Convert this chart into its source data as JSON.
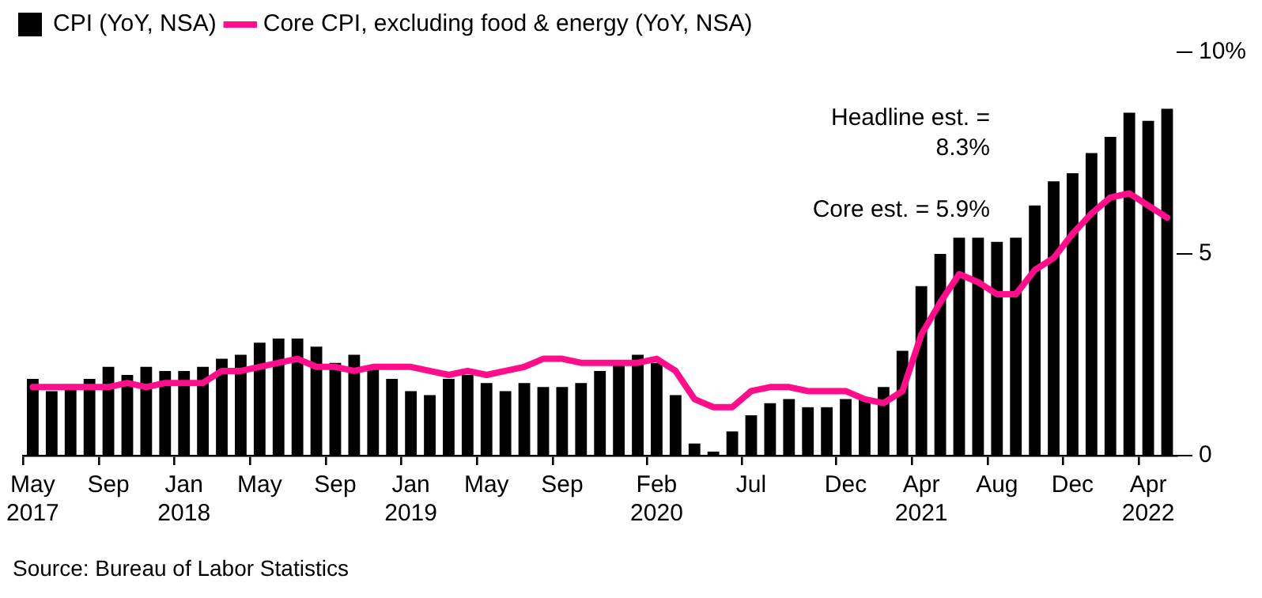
{
  "chart_data": {
    "type": "bar",
    "categories": [
      "May 2017",
      null,
      null,
      null,
      "Sep",
      null,
      null,
      null,
      "Jan 2018",
      null,
      null,
      null,
      "May",
      null,
      null,
      null,
      "Sep",
      null,
      null,
      null,
      "Jan 2019",
      null,
      null,
      null,
      "May",
      null,
      null,
      null,
      "Sep",
      null,
      null,
      null,
      null,
      "Feb 2020",
      null,
      null,
      null,
      null,
      "Jul",
      null,
      null,
      null,
      null,
      "Dec",
      null,
      null,
      null,
      "Apr 2021",
      null,
      null,
      null,
      "Aug",
      null,
      null,
      null,
      "Dec",
      null,
      null,
      null,
      "Apr 2022",
      null
    ],
    "series": [
      {
        "name": "CPI (YoY, NSA)",
        "color": "#000000",
        "values": [
          1.9,
          1.6,
          1.7,
          1.9,
          2.2,
          2.0,
          2.2,
          2.1,
          2.1,
          2.2,
          2.4,
          2.5,
          2.8,
          2.9,
          2.9,
          2.7,
          2.3,
          2.5,
          2.2,
          1.9,
          1.6,
          1.5,
          1.9,
          2.0,
          1.8,
          1.6,
          1.8,
          1.7,
          1.7,
          1.8,
          2.1,
          2.3,
          2.5,
          2.3,
          1.5,
          0.3,
          0.1,
          0.6,
          1.0,
          1.3,
          1.4,
          1.2,
          1.2,
          1.4,
          1.4,
          1.7,
          2.6,
          4.2,
          5.0,
          5.4,
          5.4,
          5.3,
          5.4,
          6.2,
          6.8,
          7.0,
          7.5,
          7.9,
          8.5,
          8.3,
          8.6
        ]
      },
      {
        "name": "Core CPI, excluding food & energy (YoY, NSA)",
        "type": "line",
        "color": "#ff0d8a",
        "values": [
          1.7,
          1.7,
          1.7,
          1.7,
          1.7,
          1.8,
          1.7,
          1.8,
          1.8,
          1.8,
          2.1,
          2.1,
          2.2,
          2.3,
          2.4,
          2.2,
          2.2,
          2.1,
          2.2,
          2.2,
          2.2,
          2.1,
          2.0,
          2.1,
          2.0,
          2.1,
          2.2,
          2.4,
          2.4,
          2.3,
          2.3,
          2.3,
          2.3,
          2.4,
          2.1,
          1.4,
          1.2,
          1.2,
          1.6,
          1.7,
          1.7,
          1.6,
          1.6,
          1.6,
          1.4,
          1.3,
          1.6,
          3.0,
          3.8,
          4.5,
          4.3,
          4.0,
          4.0,
          4.6,
          4.9,
          5.5,
          6.0,
          6.4,
          6.5,
          6.2,
          5.9
        ]
      }
    ],
    "ylim": [
      0,
      10
    ],
    "yticks": [
      {
        "value": 0,
        "label": "0"
      },
      {
        "value": 5,
        "label": "5"
      },
      {
        "value": 10,
        "label": "10%"
      }
    ],
    "grid": false,
    "legend": "top left",
    "line_style": "solid",
    "marker": "none",
    "annotations": [
      "Headline est. =\n8.3%",
      "Core est. = 5.9%",
      "Source: Bureau of Labor Statistics"
    ]
  }
}
